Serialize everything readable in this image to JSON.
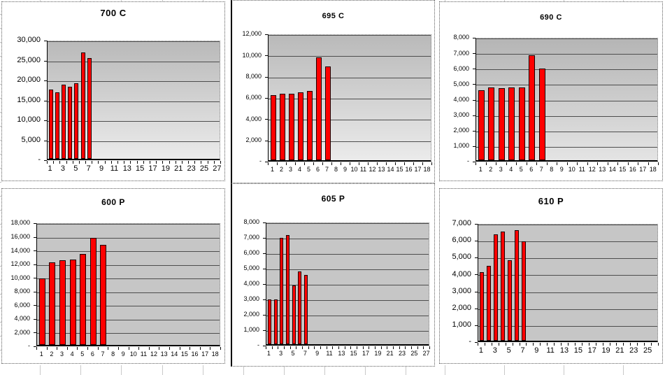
{
  "app": {
    "description": "Spreadsheet sheet containing six embedded bar charts",
    "accent_color": "#ff0000",
    "sheet_gridline_color": "#c9c9c9"
  },
  "chart_data": [
    {
      "type": "bar",
      "title": "700 C",
      "n_categories": 27,
      "x_tick_labels": [
        "1",
        "3",
        "5",
        "7",
        "9",
        "11",
        "13",
        "15",
        "17",
        "19",
        "21",
        "23",
        "25",
        "27"
      ],
      "values": [
        17400,
        16600,
        18600,
        18000,
        19000,
        26700,
        25300
      ],
      "ylim": [
        0,
        30000
      ],
      "ytick_step": 5000,
      "y_tick_labels": [
        "30,000",
        "25,000",
        "20,000",
        "15,000",
        "10,000",
        "5,000",
        "-"
      ],
      "bar_color": "#ff0000",
      "plot_background": "gradient",
      "plot_colors": [
        "#b9b9b9",
        "#ebebeb"
      ],
      "grid": true,
      "legend": false
    },
    {
      "type": "bar",
      "title": "695 C",
      "n_categories": 18,
      "x_tick_labels": [
        "1",
        "2",
        "3",
        "4",
        "5",
        "6",
        "7",
        "8",
        "9",
        "10",
        "11",
        "12",
        "13",
        "14",
        "15",
        "16",
        "17",
        "18"
      ],
      "values": [
        6100,
        6270,
        6270,
        6400,
        6550,
        9700,
        8860
      ],
      "ylim": [
        0,
        12000
      ],
      "ytick_step": 2000,
      "y_tick_labels": [
        "12,000",
        "10,000",
        "8,000",
        "6,000",
        "4,000",
        "2,000",
        "-"
      ],
      "bar_color": "#ff0000",
      "plot_background": "gradient",
      "plot_colors": [
        "#b9b9b9",
        "#ebebeb"
      ],
      "grid": true,
      "legend": false
    },
    {
      "type": "bar",
      "title": "690 C",
      "n_categories": 18,
      "x_tick_labels": [
        "1",
        "2",
        "3",
        "4",
        "5",
        "6",
        "7",
        "8",
        "9",
        "10",
        "11",
        "12",
        "13",
        "14",
        "15",
        "16",
        "17",
        "18"
      ],
      "values": [
        4500,
        4700,
        4650,
        4700,
        4700,
        6800,
        5900
      ],
      "ylim": [
        0,
        8000
      ],
      "ytick_step": 1000,
      "y_tick_labels": [
        "8,000",
        "7,000",
        "6,000",
        "5,000",
        "4,000",
        "3,000",
        "2,000",
        "1,000",
        "-"
      ],
      "bar_color": "#ff0000",
      "plot_background": "gradient",
      "plot_colors": [
        "#b5b5b5",
        "#e4e4e4"
      ],
      "grid": true,
      "legend": false
    },
    {
      "type": "bar",
      "title": "600 P",
      "n_categories": 18,
      "x_tick_labels": [
        "1",
        "2",
        "3",
        "4",
        "5",
        "6",
        "7",
        "8",
        "9",
        "10",
        "11",
        "12",
        "13",
        "14",
        "15",
        "16",
        "17",
        "18"
      ],
      "values": [
        9700,
        12050,
        12400,
        12500,
        13300,
        15600,
        14600
      ],
      "ylim": [
        0,
        18000
      ],
      "ytick_step": 2000,
      "y_tick_labels": [
        "18,000",
        "16,000",
        "14,000",
        "12,000",
        "10,000",
        "8,000",
        "6,000",
        "4,000",
        "2,000",
        "-"
      ],
      "bar_color": "#ff0000",
      "plot_background": "solid",
      "plot_colors": [
        "#c6c6c6",
        "#c6c6c6"
      ],
      "grid": true,
      "legend": false
    },
    {
      "type": "bar",
      "title": "605 P",
      "n_categories": 27,
      "x_tick_labels": [
        "1",
        "3",
        "5",
        "7",
        "9",
        "11",
        "13",
        "15",
        "17",
        "19",
        "21",
        "23",
        "25",
        "27"
      ],
      "values": [
        2900,
        2900,
        6900,
        7080,
        3800,
        4730,
        4480
      ],
      "ylim": [
        0,
        8000
      ],
      "ytick_step": 1000,
      "y_tick_labels": [
        "8,000",
        "7,000",
        "6,000",
        "5,000",
        "4,000",
        "3,000",
        "2,000",
        "1,000",
        "-"
      ],
      "bar_color": "#ff0000",
      "plot_background": "solid",
      "plot_colors": [
        "#c6c6c6",
        "#c6c6c6"
      ],
      "grid": true,
      "legend": false
    },
    {
      "type": "bar",
      "title": "610 P",
      "n_categories": 26,
      "x_tick_labels": [
        "1",
        "3",
        "5",
        "7",
        "9",
        "11",
        "13",
        "15",
        "17",
        "19",
        "21",
        "23",
        "25"
      ],
      "values": [
        4050,
        4450,
        6300,
        6480,
        4750,
        6550,
        5900
      ],
      "ylim": [
        0,
        7000
      ],
      "ytick_step": 1000,
      "y_tick_labels": [
        "7,000",
        "6,000",
        "5,000",
        "4,000",
        "3,000",
        "2,000",
        "1,000",
        "-"
      ],
      "bar_color": "#ff0000",
      "plot_background": "solid",
      "plot_colors": [
        "#c6c6c6",
        "#c6c6c6"
      ],
      "grid": true,
      "legend": false
    }
  ]
}
